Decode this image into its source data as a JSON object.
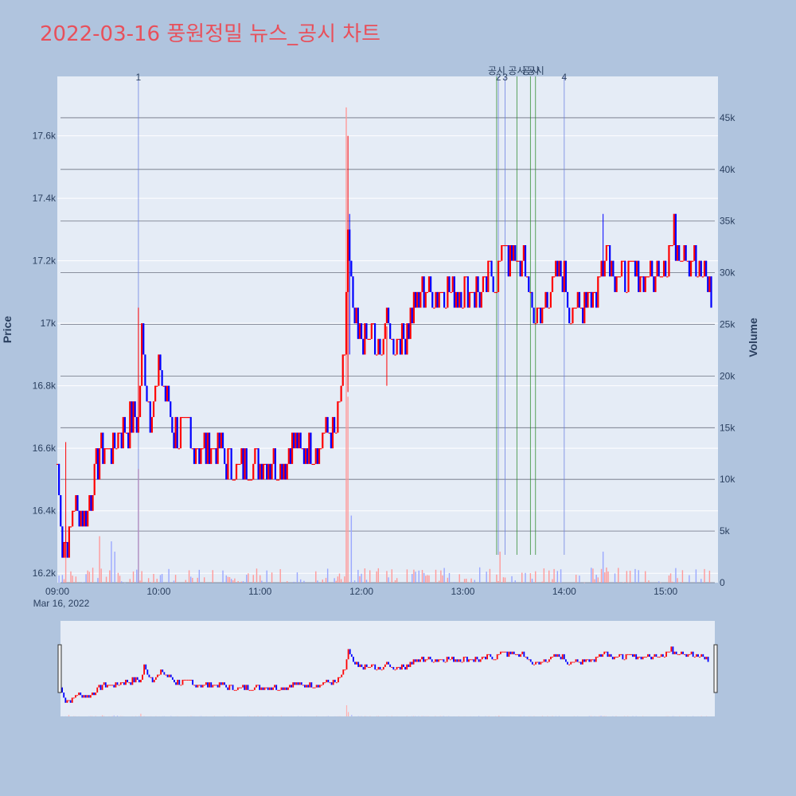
{
  "title": "2022-03-16 풍원정밀 뉴스_공시 차트",
  "colors": {
    "up": "#ff0000",
    "down": "#0000ff",
    "plot_bg": "#e5ecf6",
    "page_bg": "#b0c4de",
    "news_line": "#6b7fe0",
    "disclosure_line": "#2e8b2e",
    "title": "#e8505b"
  },
  "chart_data": {
    "type": "candlestick",
    "xlabel": "",
    "ylabel": "Price",
    "y2label": "Volume",
    "date_label": "Mar 16, 2022",
    "x_ticks": [
      "09:00",
      "10:00",
      "11:00",
      "12:00",
      "13:00",
      "14:00",
      "15:00"
    ],
    "y_ticks": [
      "16.2k",
      "16.4k",
      "16.6k",
      "16.8k",
      "17k",
      "17.2k",
      "17.4k",
      "17.6k"
    ],
    "y_tick_values": [
      16200,
      16400,
      16600,
      16800,
      17000,
      17200,
      17400,
      17600
    ],
    "y2_ticks": [
      "0",
      "5k",
      "10k",
      "15k",
      "20k",
      "25k",
      "30k",
      "35k",
      "40k",
      "45k"
    ],
    "y2_tick_values": [
      0,
      5000,
      10000,
      15000,
      20000,
      25000,
      30000,
      35000,
      40000,
      45000
    ],
    "ylim": [
      16170,
      17790
    ],
    "y2lim": [
      0,
      49000
    ],
    "xlim": [
      "09:00",
      "15:31"
    ],
    "price_anchors": [
      [
        "09:00",
        16550
      ],
      [
        "09:03",
        16300
      ],
      [
        "09:06",
        16280
      ],
      [
        "09:09",
        16400
      ],
      [
        "09:12",
        16380
      ],
      [
        "09:18",
        16420
      ],
      [
        "09:22",
        16520
      ],
      [
        "09:26",
        16620
      ],
      [
        "09:32",
        16600
      ],
      [
        "09:38",
        16650
      ],
      [
        "09:44",
        16680
      ],
      [
        "09:48",
        16680
      ],
      [
        "09:50",
        16950
      ],
      [
        "09:52",
        16850
      ],
      [
        "09:55",
        16700
      ],
      [
        "10:00",
        16850
      ],
      [
        "10:05",
        16750
      ],
      [
        "10:10",
        16650
      ],
      [
        "10:20",
        16620
      ],
      [
        "10:30",
        16600
      ],
      [
        "10:40",
        16570
      ],
      [
        "10:50",
        16550
      ],
      [
        "11:00",
        16550
      ],
      [
        "11:15",
        16570
      ],
      [
        "11:25",
        16600
      ],
      [
        "11:35",
        16620
      ],
      [
        "11:45",
        16650
      ],
      [
        "11:48",
        16800
      ],
      [
        "11:50",
        16850
      ],
      [
        "11:52",
        17300
      ],
      [
        "11:53",
        17200
      ],
      [
        "11:55",
        17000
      ],
      [
        "12:00",
        16950
      ],
      [
        "12:05",
        16950
      ],
      [
        "12:10",
        16900
      ],
      [
        "12:15",
        17000
      ],
      [
        "12:20",
        16950
      ],
      [
        "12:25",
        16950
      ],
      [
        "12:30",
        17050
      ],
      [
        "12:40",
        17100
      ],
      [
        "12:50",
        17100
      ],
      [
        "13:00",
        17080
      ],
      [
        "13:10",
        17100
      ],
      [
        "13:15",
        17130
      ],
      [
        "13:20",
        17160
      ],
      [
        "13:25",
        17250
      ],
      [
        "13:30",
        17180
      ],
      [
        "13:35",
        17200
      ],
      [
        "13:40",
        17100
      ],
      [
        "13:42",
        17030
      ],
      [
        "13:45",
        16980
      ],
      [
        "13:50",
        17100
      ],
      [
        "13:55",
        17130
      ],
      [
        "14:00",
        17130
      ],
      [
        "14:03",
        17050
      ],
      [
        "14:07",
        17020
      ],
      [
        "14:12",
        17080
      ],
      [
        "14:20",
        17130
      ],
      [
        "14:25",
        17250
      ],
      [
        "14:28",
        17200
      ],
      [
        "14:30",
        17170
      ],
      [
        "14:40",
        17130
      ],
      [
        "14:50",
        17150
      ],
      [
        "15:00",
        17200
      ],
      [
        "15:05",
        17280
      ],
      [
        "15:10",
        17250
      ],
      [
        "15:15",
        17200
      ],
      [
        "15:20",
        17150
      ],
      [
        "15:25",
        17150
      ],
      [
        "15:27",
        17080
      ]
    ],
    "spikes": [
      [
        "09:48",
        17050,
        16650
      ],
      [
        "11:52",
        17600,
        16780
      ],
      [
        "11:53",
        17350,
        16900
      ],
      [
        "14:23",
        17350,
        17200
      ],
      [
        "09:05",
        16620,
        16250
      ],
      [
        "12:15",
        16990,
        16800
      ]
    ],
    "volume_spikes": [
      [
        "09:48",
        11000
      ],
      [
        "11:51",
        46000
      ],
      [
        "11:52",
        18000
      ],
      [
        "11:54",
        6500
      ],
      [
        "13:22",
        3000
      ],
      [
        "14:23",
        3000
      ],
      [
        "15:30",
        7000
      ],
      [
        "09:05",
        5500
      ],
      [
        "09:25",
        4500
      ],
      [
        "09:32",
        4000
      ],
      [
        "09:34",
        3000
      ]
    ]
  },
  "events": {
    "news": [
      {
        "label": "1",
        "time": "09:48"
      },
      {
        "label": "2",
        "time": "13:21"
      },
      {
        "label": "3",
        "time": "13:25"
      },
      {
        "label": "4",
        "time": "14:00"
      }
    ],
    "disclosures": [
      {
        "label": "공시",
        "time": "13:20"
      },
      {
        "label": "공시",
        "time": "13:32"
      },
      {
        "label": "공시",
        "time": "13:40"
      },
      {
        "label": "공시",
        "time": "13:43"
      }
    ]
  }
}
